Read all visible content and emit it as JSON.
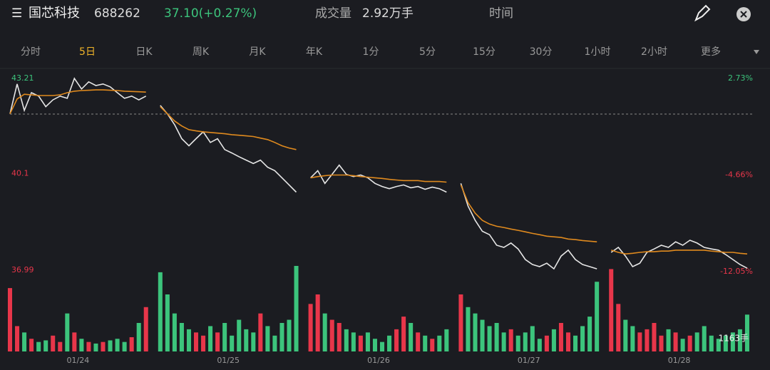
{
  "header": {
    "name": "国芯科技",
    "code": "688262",
    "price": "37.10(+0.27%)",
    "volume_title": "成交量",
    "volume": "2.92万手",
    "time": "时间"
  },
  "tabs": [
    "分时",
    "5日",
    "日K",
    "周K",
    "月K",
    "年K",
    "1分",
    "5分",
    "15分",
    "30分",
    "1小时",
    "2小时",
    "更多"
  ],
  "active_tab": 1,
  "chart_data": {
    "type": "line",
    "xlim": [
      0,
      104
    ],
    "xticks": [
      {
        "value": 9.5,
        "label": "01/24"
      },
      {
        "value": 30.5,
        "label": "01/25"
      },
      {
        "value": 51.5,
        "label": "01/26"
      },
      {
        "value": 72.5,
        "label": "01/27"
      },
      {
        "value": 93.5,
        "label": "01/28"
      }
    ],
    "ylim": [
      36.99,
      43.21
    ],
    "yticks": [
      36.99,
      40.1,
      43.21
    ],
    "y2lim": [
      -12.05,
      2.73
    ],
    "y2ticks": [
      {
        "value": -12.05,
        "label": "-12.05%"
      },
      {
        "value": -4.66,
        "label": "-4.66%"
      },
      {
        "value": 2.73,
        "label": "2.73%"
      }
    ],
    "up_color": "#e8364a",
    "down_color": "#3cc47c",
    "series": [
      {
        "name": "价格",
        "color": "#e6e6e6",
        "values": [
          42.07,
          43.03,
          42.18,
          42.75,
          42.64,
          42.3,
          42.52,
          42.64,
          42.57,
          43.21,
          42.87,
          43.1,
          42.98,
          43.03,
          42.94,
          42.75,
          42.57,
          42.64,
          42.52,
          42.64,
          null,
          42.34,
          42.07,
          41.72,
          41.27,
          41.04,
          41.27,
          41.49,
          41.15,
          41.27,
          40.92,
          40.81,
          40.69,
          40.58,
          40.47,
          40.58,
          40.35,
          40.24,
          40.01,
          39.78,
          39.55,
          null,
          40.01,
          40.24,
          39.83,
          40.12,
          40.42,
          40.12,
          40.05,
          40.1,
          40.01,
          39.83,
          39.73,
          39.66,
          39.73,
          39.78,
          39.69,
          39.73,
          39.64,
          39.71,
          39.66,
          39.55,
          null,
          39.83,
          39.1,
          38.64,
          38.29,
          38.18,
          37.84,
          37.77,
          37.91,
          37.72,
          37.38,
          37.22,
          37.15,
          37.26,
          37.08,
          37.49,
          37.68,
          37.38,
          37.22,
          37.15,
          37.08,
          null,
          37.61,
          37.77,
          37.49,
          37.15,
          37.26,
          37.61,
          37.72,
          37.84,
          37.77,
          37.95,
          37.84,
          38.0,
          37.91,
          37.77,
          37.72,
          37.68,
          37.54,
          37.38,
          37.22,
          37.1,
          null
        ]
      },
      {
        "name": "均价",
        "color": "#e08a1e",
        "values": [
          42.07,
          42.55,
          42.7,
          42.68,
          42.66,
          42.66,
          42.66,
          42.68,
          42.75,
          42.8,
          42.82,
          42.83,
          42.84,
          42.84,
          42.83,
          42.82,
          42.8,
          42.79,
          42.78,
          42.77,
          null,
          42.3,
          42.07,
          41.84,
          41.68,
          41.56,
          41.52,
          41.49,
          41.47,
          41.45,
          41.43,
          41.4,
          41.38,
          41.36,
          41.34,
          41.29,
          41.24,
          41.15,
          41.04,
          40.97,
          40.92,
          null,
          40.01,
          40.05,
          40.08,
          40.1,
          40.1,
          40.1,
          40.08,
          40.05,
          40.03,
          40.01,
          39.99,
          39.96,
          39.94,
          39.92,
          39.92,
          39.92,
          39.89,
          39.89,
          39.89,
          39.87,
          null,
          39.78,
          39.21,
          38.87,
          38.64,
          38.52,
          38.45,
          38.41,
          38.36,
          38.32,
          38.27,
          38.22,
          38.18,
          38.13,
          38.11,
          38.09,
          38.04,
          38.02,
          37.99,
          37.97,
          37.95,
          null,
          37.68,
          37.61,
          37.56,
          37.58,
          37.61,
          37.63,
          37.63,
          37.65,
          37.65,
          37.68,
          37.68,
          37.68,
          37.68,
          37.68,
          37.65,
          37.63,
          37.61,
          37.61,
          37.58,
          37.56,
          null
        ]
      }
    ],
    "volume": {
      "vlim": [
        0,
        2700
      ],
      "label": "1163手",
      "values": [
        2000,
        800,
        600,
        400,
        300,
        350,
        500,
        300,
        1200,
        600,
        400,
        300,
        250,
        300,
        350,
        400,
        300,
        450,
        900,
        1400,
        null,
        2500,
        1800,
        1200,
        900,
        700,
        600,
        500,
        800,
        600,
        900,
        500,
        1000,
        700,
        600,
        1200,
        800,
        500,
        900,
        1000,
        2700,
        null,
        1500,
        1800,
        1200,
        1000,
        900,
        700,
        600,
        500,
        600,
        400,
        300,
        500,
        700,
        1100,
        900,
        600,
        500,
        400,
        500,
        700,
        null,
        1800,
        1400,
        1200,
        1000,
        800,
        900,
        600,
        700,
        500,
        600,
        800,
        400,
        500,
        700,
        900,
        600,
        500,
        800,
        1100,
        2200,
        null,
        2600,
        1500,
        1000,
        800,
        600,
        700,
        900,
        500,
        700,
        600,
        400,
        500,
        600,
        800,
        500,
        400,
        500,
        600,
        700,
        1163,
        null
      ]
    }
  }
}
